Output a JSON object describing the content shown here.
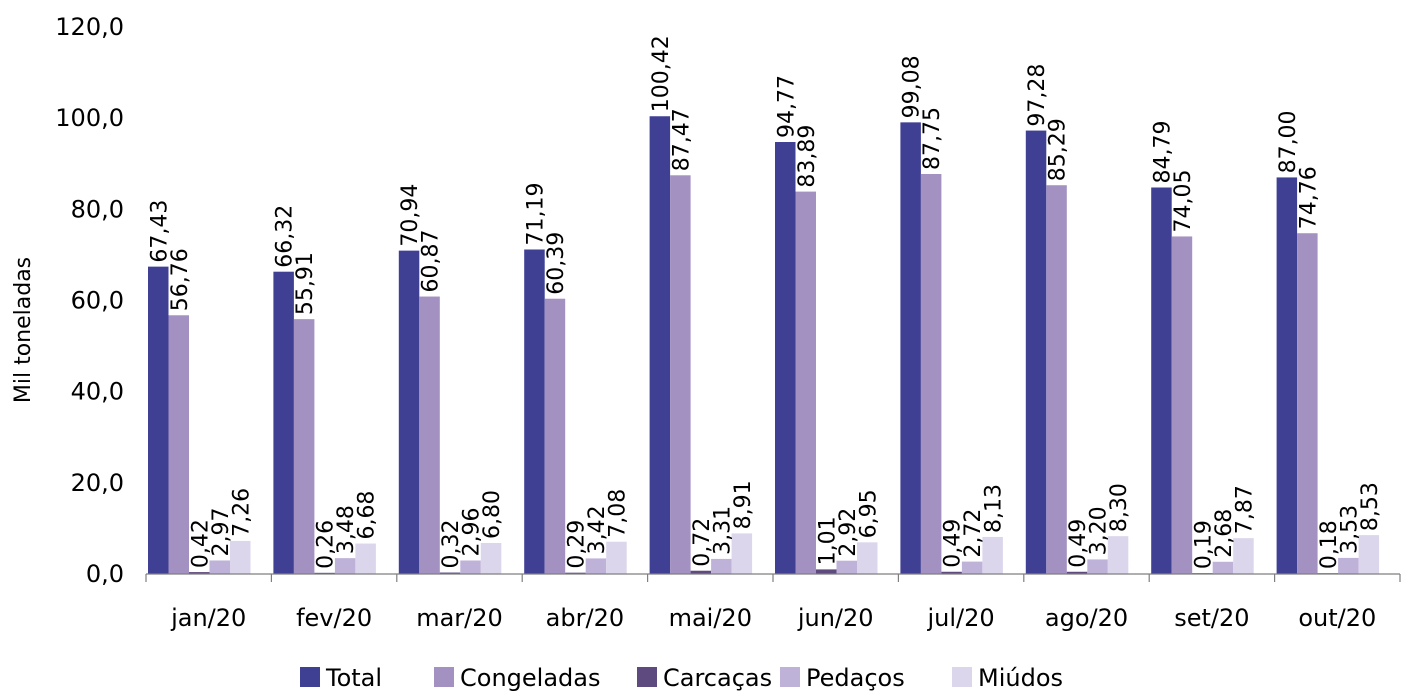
{
  "chart_data": {
    "type": "bar",
    "title": "",
    "xlabel": "",
    "ylabel": "Mil toneladas",
    "ylim": [
      0,
      120
    ],
    "yticks": [
      "0,0",
      "20,0",
      "40,0",
      "60,0",
      "80,0",
      "100,0",
      "120,0"
    ],
    "grid": false,
    "legend_position": "bottom",
    "categories": [
      "jan/20",
      "fev/20",
      "mar/20",
      "abr/20",
      "mai/20",
      "jun/20",
      "jul/20",
      "ago/20",
      "set/20",
      "out/20"
    ],
    "series": [
      {
        "name": "Total",
        "color": "#3f3f94",
        "values": [
          67.43,
          66.32,
          70.94,
          71.19,
          100.42,
          94.77,
          99.08,
          97.28,
          84.79,
          87.0
        ],
        "labels": [
          "67,43",
          "66,32",
          "70,94",
          "71,19",
          "100,42",
          "94,77",
          "99,08",
          "97,28",
          "84,79",
          "87,00"
        ]
      },
      {
        "name": "Congeladas",
        "color": "#a391c2",
        "values": [
          56.76,
          55.91,
          60.87,
          60.39,
          87.47,
          83.89,
          87.75,
          85.29,
          74.05,
          74.76
        ],
        "labels": [
          "56,76",
          "55,91",
          "60,87",
          "60,39",
          "87,47",
          "83,89",
          "87,75",
          "85,29",
          "74,05",
          "74,76"
        ]
      },
      {
        "name": "Carcaças",
        "color": "#5e4a7e",
        "values": [
          0.42,
          0.26,
          0.32,
          0.29,
          0.72,
          1.01,
          0.49,
          0.49,
          0.19,
          0.18
        ],
        "labels": [
          "0,42",
          "0,26",
          "0,32",
          "0,29",
          "0,72",
          "1,01",
          "0,49",
          "0,49",
          "0,19",
          "0,18"
        ]
      },
      {
        "name": "Pedaços",
        "color": "#bfb2d8",
        "values": [
          2.97,
          3.48,
          2.96,
          3.42,
          3.31,
          2.92,
          2.72,
          3.2,
          2.68,
          3.53
        ],
        "labels": [
          "2,97",
          "3,48",
          "2,96",
          "3,42",
          "3,31",
          "2,92",
          "2,72",
          "3,20",
          "2,68",
          "3,53"
        ]
      },
      {
        "name": "Miúdos",
        "color": "#dcd6ec",
        "values": [
          7.26,
          6.68,
          6.8,
          7.08,
          8.91,
          6.95,
          8.13,
          8.3,
          7.87,
          8.53
        ],
        "labels": [
          "7,26",
          "6,68",
          "6,80",
          "7,08",
          "8,91",
          "6,95",
          "8,13",
          "8,30",
          "7,87",
          "8,53"
        ]
      }
    ]
  }
}
